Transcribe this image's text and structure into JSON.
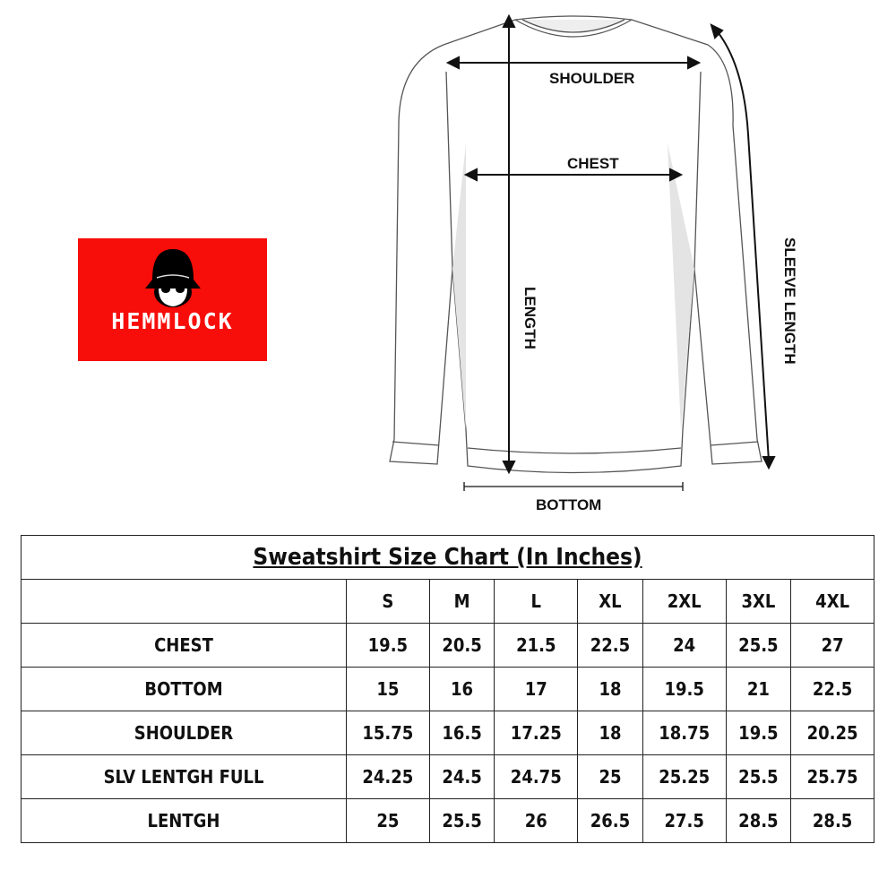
{
  "brand": {
    "name": "HEMMLOCK",
    "color": "#f70d0a"
  },
  "diagram": {
    "shoulder": "SHOULDER",
    "chest": "CHEST",
    "length": "LENGTH",
    "sleeve_length": "SLEEVE LENGTH",
    "bottom": "BOTTOM"
  },
  "table": {
    "title": "Sweatshirt Size Chart (In Inches)",
    "sizes": [
      "S",
      "M",
      "L",
      "XL",
      "2XL",
      "3XL",
      "4XL"
    ],
    "rows": [
      {
        "label": "CHEST",
        "values": [
          "19.5",
          "20.5",
          "21.5",
          "22.5",
          "24",
          "25.5",
          "27"
        ]
      },
      {
        "label": "BOTTOM",
        "values": [
          "15",
          "16",
          "17",
          "18",
          "19.5",
          "21",
          "22.5"
        ]
      },
      {
        "label": "SHOULDER",
        "values": [
          "15.75",
          "16.5",
          "17.25",
          "18",
          "18.75",
          "19.5",
          "20.25"
        ]
      },
      {
        "label": "SLV LENTGH FULL",
        "values": [
          "24.25",
          "24.5",
          "24.75",
          "25",
          "25.25",
          "25.5",
          "25.75"
        ]
      },
      {
        "label": "LENTGH",
        "values": [
          "25",
          "25.5",
          "26",
          "26.5",
          "27.5",
          "28.5",
          "28.5"
        ]
      }
    ]
  }
}
